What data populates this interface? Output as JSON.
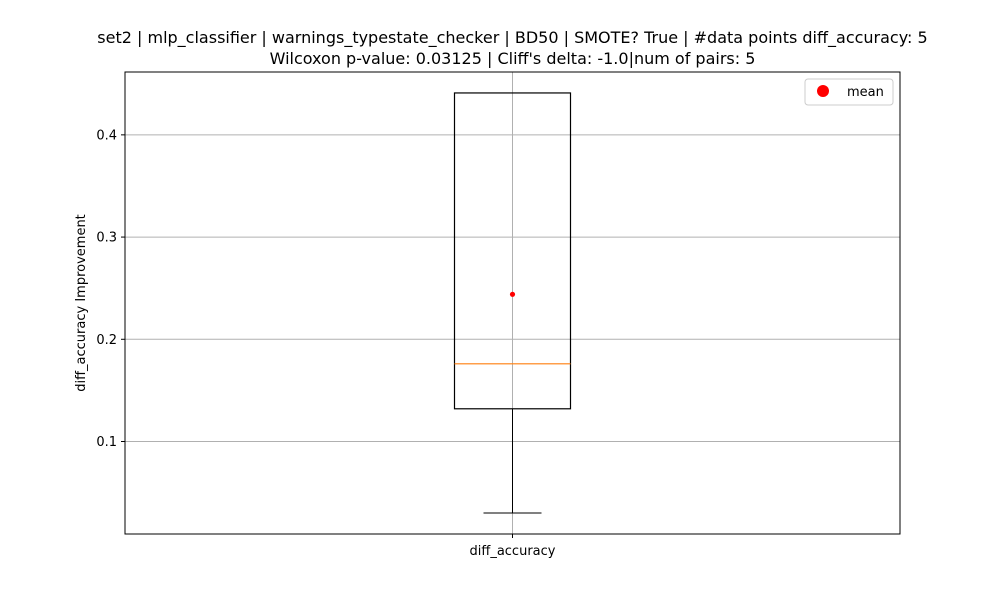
{
  "chart_data": {
    "type": "box",
    "title_line1": "set2 | mlp_classifier | warnings_typestate_checker | BD50 | SMOTE? True | #data points diff_accuracy: 5",
    "title_line2": "Wilcoxon p-value: 0.03125 | Cliff's delta: -1.0|num of pairs: 5",
    "xlabel": "",
    "ylabel": "diff_accuracy Improvement",
    "categories": [
      "diff_accuracy"
    ],
    "yticks": [
      0.1,
      0.2,
      0.3,
      0.4
    ],
    "ytick_labels": [
      "0.1",
      "0.2",
      "0.3",
      "0.4"
    ],
    "ylim": [
      0.0095,
      0.4615
    ],
    "grid": true,
    "legend_position": "top-right",
    "legend": [
      {
        "label": "mean",
        "color": "#ff0000",
        "marker": "circle"
      }
    ],
    "boxes": [
      {
        "category": "diff_accuracy",
        "whisker_low": 0.03,
        "q1": 0.132,
        "median": 0.176,
        "q3": 0.441,
        "whisker_high": 0.441,
        "mean": 0.244
      }
    ],
    "colors": {
      "box": "#000000",
      "median": "#ff7f0e",
      "mean": "#ff0000",
      "grid": "#b0b0b0"
    }
  }
}
